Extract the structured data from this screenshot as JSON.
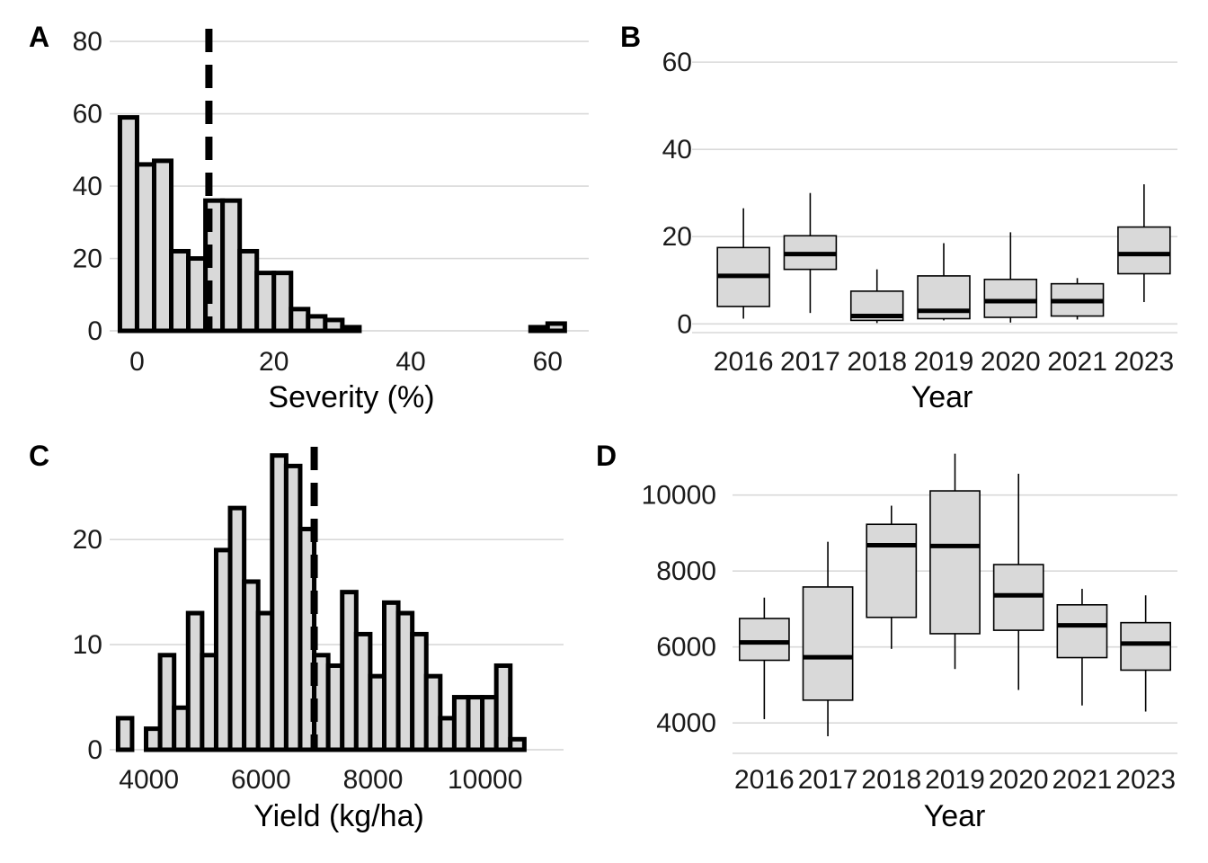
{
  "chart_data": [
    {
      "panel": "A",
      "type": "bar",
      "xlabel": "Severity (%)",
      "ylabel": "",
      "xlim": [
        -4,
        66
      ],
      "ylim": [
        0,
        84
      ],
      "x_ticks": [
        0,
        20,
        40,
        60
      ],
      "y_ticks": [
        0,
        20,
        40,
        60,
        80
      ],
      "bin_width": 2.5,
      "bins_start": [
        -2.5,
        0,
        2.5,
        5,
        7.5,
        10,
        12.5,
        15,
        17.5,
        20,
        22.5,
        25,
        27.5,
        30,
        32.5,
        35,
        37.5,
        40,
        42.5,
        45,
        47.5,
        50,
        52.5,
        55,
        57.5,
        60,
        62.5
      ],
      "counts": [
        59,
        46,
        47,
        22,
        20,
        36,
        36,
        22,
        16,
        16,
        6,
        4,
        3,
        1,
        0,
        0,
        0,
        0,
        0,
        0,
        0,
        0,
        0,
        0,
        1,
        2,
        0
      ],
      "reference_line_x": 10.5
    },
    {
      "panel": "B",
      "type": "box",
      "xlabel": "Year",
      "ylabel": "",
      "ylim": [
        -2,
        66
      ],
      "y_ticks": [
        0,
        20,
        40,
        60
      ],
      "categories": [
        "2016",
        "2017",
        "2018",
        "2019",
        "2020",
        "2021",
        "2023"
      ],
      "boxes": [
        {
          "min": 1.2,
          "q1": 4,
          "median": 11,
          "q3": 17.5,
          "max": 26.5
        },
        {
          "min": 2.5,
          "q1": 12.5,
          "median": 16,
          "q3": 20.2,
          "max": 30
        },
        {
          "min": 0.2,
          "q1": 0.8,
          "median": 1.8,
          "q3": 7.5,
          "max": 12.5
        },
        {
          "min": 0.8,
          "q1": 1.2,
          "median": 3,
          "q3": 11,
          "max": 18.5
        },
        {
          "min": 0.3,
          "q1": 1.5,
          "median": 5.2,
          "q3": 10.2,
          "max": 21
        },
        {
          "min": 1,
          "q1": 1.8,
          "median": 5.2,
          "q3": 9.2,
          "max": 10.5
        },
        {
          "min": 5,
          "q1": 11.5,
          "median": 16,
          "q3": 22.2,
          "max": 32
        }
      ]
    },
    {
      "panel": "C",
      "type": "bar",
      "xlabel": "Yield (kg/ha)",
      "ylabel": "",
      "xlim": [
        3300,
        11400
      ],
      "ylim": [
        0,
        29
      ],
      "x_ticks": [
        4000,
        6000,
        8000,
        10000
      ],
      "y_ticks": [
        0,
        10,
        20
      ],
      "bin_width": 250,
      "bins_start": [
        3450,
        3700,
        3950,
        4200,
        4450,
        4700,
        4950,
        5200,
        5450,
        5700,
        5950,
        6200,
        6450,
        6700,
        6950,
        7200,
        7450,
        7700,
        7950,
        8200,
        8450,
        8700,
        8950,
        9200,
        9450,
        9700,
        9950,
        10200,
        10450,
        10700,
        10950
      ],
      "counts": [
        3,
        0,
        2,
        9,
        4,
        13,
        9,
        19,
        23,
        16,
        13,
        28,
        27,
        21,
        9,
        8,
        15,
        11,
        7,
        14,
        13,
        11,
        7,
        3,
        5,
        5,
        5,
        8,
        1,
        0,
        0
      ],
      "reference_line_x": 6950
    },
    {
      "panel": "D",
      "type": "box",
      "xlabel": "Year",
      "ylabel": "",
      "ylim": [
        3200,
        11200
      ],
      "y_ticks": [
        4000,
        6000,
        8000,
        10000
      ],
      "categories": [
        "2016",
        "2017",
        "2018",
        "2019",
        "2020",
        "2021",
        "2023"
      ],
      "boxes": [
        {
          "min": 4100,
          "q1": 5650,
          "median": 6120,
          "q3": 6750,
          "max": 7300
        },
        {
          "min": 3650,
          "q1": 4600,
          "median": 5730,
          "q3": 7580,
          "max": 8770
        },
        {
          "min": 5950,
          "q1": 6780,
          "median": 8680,
          "q3": 9230,
          "max": 9720
        },
        {
          "min": 5420,
          "q1": 6350,
          "median": 8660,
          "q3": 10110,
          "max": 11090
        },
        {
          "min": 4870,
          "q1": 6440,
          "median": 7360,
          "q3": 8170,
          "max": 10560
        },
        {
          "min": 4460,
          "q1": 5720,
          "median": 6570,
          "q3": 7110,
          "max": 7530
        },
        {
          "min": 4300,
          "q1": 5390,
          "median": 6090,
          "q3": 6640,
          "max": 7360
        }
      ]
    }
  ]
}
